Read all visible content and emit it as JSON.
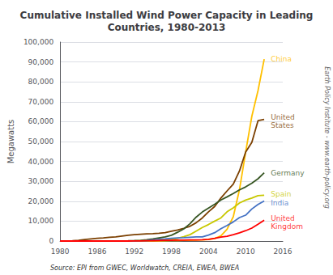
{
  "chart_data": {
    "type": "line",
    "title": "Cumulative Installed Wind Power Capacity in Leading\nCountries, 1980-2013",
    "ylabel": "Megawatts",
    "source": "Source: EPI from GWEC, Worldwatch, CREIA, EWEA, BWEA",
    "watermark": "Earth Policy Institute - www.earth-policy.org",
    "x": [
      1980,
      1981,
      1982,
      1983,
      1984,
      1985,
      1986,
      1987,
      1988,
      1989,
      1990,
      1991,
      1992,
      1993,
      1994,
      1995,
      1996,
      1997,
      1998,
      1999,
      2000,
      2001,
      2002,
      2003,
      2004,
      2005,
      2006,
      2007,
      2008,
      2009,
      2010,
      2011,
      2012,
      2013
    ],
    "series": [
      {
        "name": "China",
        "color": "#FFC000",
        "values": [
          0,
          0,
          0,
          0,
          0,
          0,
          0,
          0,
          0,
          0,
          5,
          10,
          15,
          20,
          30,
          50,
          80,
          150,
          220,
          260,
          340,
          400,
          470,
          570,
          760,
          1260,
          2600,
          5910,
          12200,
          25800,
          44700,
          62700,
          75600,
          91400
        ]
      },
      {
        "name": "United\nStates",
        "color": "#7B3F00",
        "values": [
          10,
          20,
          100,
          300,
          800,
          1100,
          1400,
          1600,
          1900,
          2100,
          2500,
          2900,
          3200,
          3400,
          3600,
          3700,
          3900,
          4200,
          4900,
          5500,
          6400,
          7400,
          9200,
          11600,
          14700,
          17400,
          21600,
          25200,
          28600,
          35200,
          44700,
          49600,
          60500,
          61100
        ]
      },
      {
        "name": "Germany",
        "color": "#375623",
        "values": [
          0,
          0,
          0,
          0,
          0,
          0,
          0,
          0,
          0,
          50,
          60,
          100,
          200,
          330,
          640,
          1100,
          1600,
          2100,
          2900,
          4400,
          6100,
          8700,
          12000,
          14600,
          16600,
          18500,
          20600,
          22200,
          23900,
          25700,
          27200,
          29100,
          31300,
          34300
        ]
      },
      {
        "name": "Spain",
        "color": "#C8C800",
        "values": [
          0,
          0,
          0,
          0,
          0,
          0,
          0,
          0,
          0,
          0,
          0,
          0,
          50,
          120,
          170,
          250,
          430,
          680,
          900,
          1400,
          2200,
          3200,
          5000,
          6800,
          8300,
          10000,
          11600,
          14700,
          16700,
          19100,
          20600,
          21600,
          22800,
          23000
        ]
      },
      {
        "name": "India",
        "color": "#4472C4",
        "values": [
          0,
          0,
          0,
          0,
          0,
          0,
          0,
          0,
          0,
          0,
          0,
          50,
          80,
          130,
          200,
          580,
          900,
          1100,
          1400,
          1600,
          1700,
          1900,
          2100,
          2100,
          3000,
          4200,
          6200,
          7800,
          9600,
          11800,
          13000,
          16100,
          18400,
          20150
        ]
      },
      {
        "name": "United\nKingdom",
        "color": "#FF0000",
        "values": [
          0,
          0,
          0,
          0,
          0,
          0,
          0,
          0,
          0,
          0,
          0,
          10,
          30,
          65,
          150,
          200,
          260,
          330,
          390,
          430,
          480,
          530,
          580,
          650,
          870,
          1360,
          1960,
          2400,
          3200,
          4100,
          5200,
          6500,
          8400,
          10500
        ]
      }
    ],
    "annotations": [
      {
        "text": "China",
        "x": 2013.8,
        "y": 91400,
        "color": "#FFC000"
      },
      {
        "text": "United\nStates",
        "x": 2013.8,
        "y": 60000,
        "color": "#7B3F00"
      },
      {
        "text": "Germany",
        "x": 2013.8,
        "y": 34300,
        "color": "#375623"
      },
      {
        "text": "Spain",
        "x": 2013.8,
        "y": 23500,
        "color": "#C8C800"
      },
      {
        "text": "India",
        "x": 2013.8,
        "y": 19000,
        "color": "#4472C4"
      },
      {
        "text": "United\nKingdom",
        "x": 2013.8,
        "y": 9500,
        "color": "#FF0000"
      }
    ],
    "xlim": [
      1980,
      2016
    ],
    "xticks": [
      1980,
      1986,
      1992,
      1998,
      2004,
      2010,
      2016
    ],
    "ylim": [
      0,
      100000
    ],
    "yticks": [
      0,
      {
        "value": 10000,
        "label": "10,000"
      },
      {
        "value": 20000,
        "label": "20,000"
      },
      {
        "value": 30000,
        "label": "30,000"
      },
      {
        "value": 40000,
        "label": "40,000"
      },
      {
        "value": 50000,
        "label": "50,000"
      },
      {
        "value": 60000,
        "label": "60,000"
      },
      {
        "value": 70000,
        "label": "70,000"
      },
      {
        "value": 80000,
        "label": "80,000"
      },
      {
        "value": 90000,
        "label": "90,000"
      },
      {
        "value": 100000,
        "label": "100,000"
      }
    ],
    "grid": true
  }
}
